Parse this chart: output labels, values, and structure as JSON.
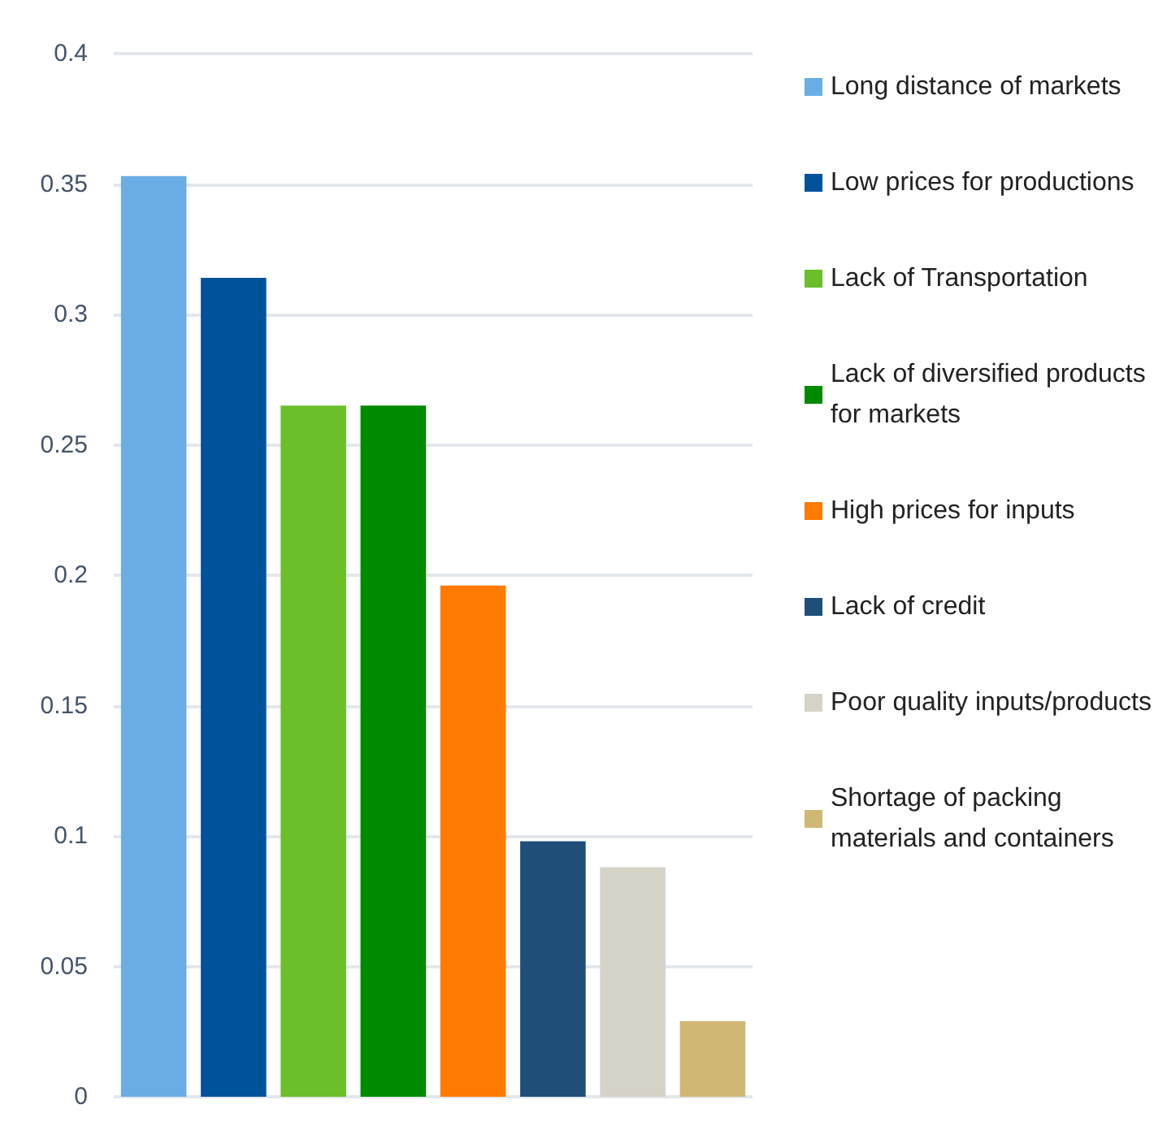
{
  "chart_data": {
    "type": "bar",
    "categories": [
      null,
      null,
      null,
      null,
      null,
      null,
      null,
      null
    ],
    "series": [
      {
        "name": "Long distance of markets",
        "color": "#6aade4",
        "values": [
          0.353,
          null,
          null,
          null,
          null,
          null,
          null,
          null
        ]
      },
      {
        "name": "Low prices for productions",
        "color": "#00529b",
        "values": [
          null,
          0.314,
          null,
          null,
          null,
          null,
          null,
          null
        ]
      },
      {
        "name": "Lack of Transportation",
        "color": "#6abf2a",
        "values": [
          null,
          null,
          0.265,
          null,
          null,
          null,
          null,
          null
        ]
      },
      {
        "name": "Lack of diversified products for markets",
        "color": "#008a00",
        "values": [
          null,
          null,
          null,
          0.265,
          null,
          null,
          null,
          null
        ]
      },
      {
        "name": "High prices for inputs",
        "color": "#ff7a00",
        "values": [
          null,
          null,
          null,
          null,
          0.196,
          null,
          null,
          null
        ]
      },
      {
        "name": "Lack of credit",
        "color": "#1f4e79",
        "values": [
          null,
          null,
          null,
          null,
          null,
          0.098,
          null,
          null
        ]
      },
      {
        "name": "Poor quality inputs/products",
        "color": "#d5d2c8",
        "values": [
          null,
          null,
          null,
          null,
          null,
          null,
          0.088,
          null
        ]
      },
      {
        "name": "Shortage of packing materials and containers",
        "color": "#d0b874",
        "values": [
          null,
          null,
          null,
          null,
          null,
          null,
          null,
          0.029
        ]
      }
    ],
    "ylim": [
      0,
      0.4
    ],
    "yticks": [
      0,
      0.05,
      0.1,
      0.15,
      0.2,
      0.25,
      0.3,
      0.35,
      0.4
    ],
    "grid": "y",
    "legend": "right"
  }
}
